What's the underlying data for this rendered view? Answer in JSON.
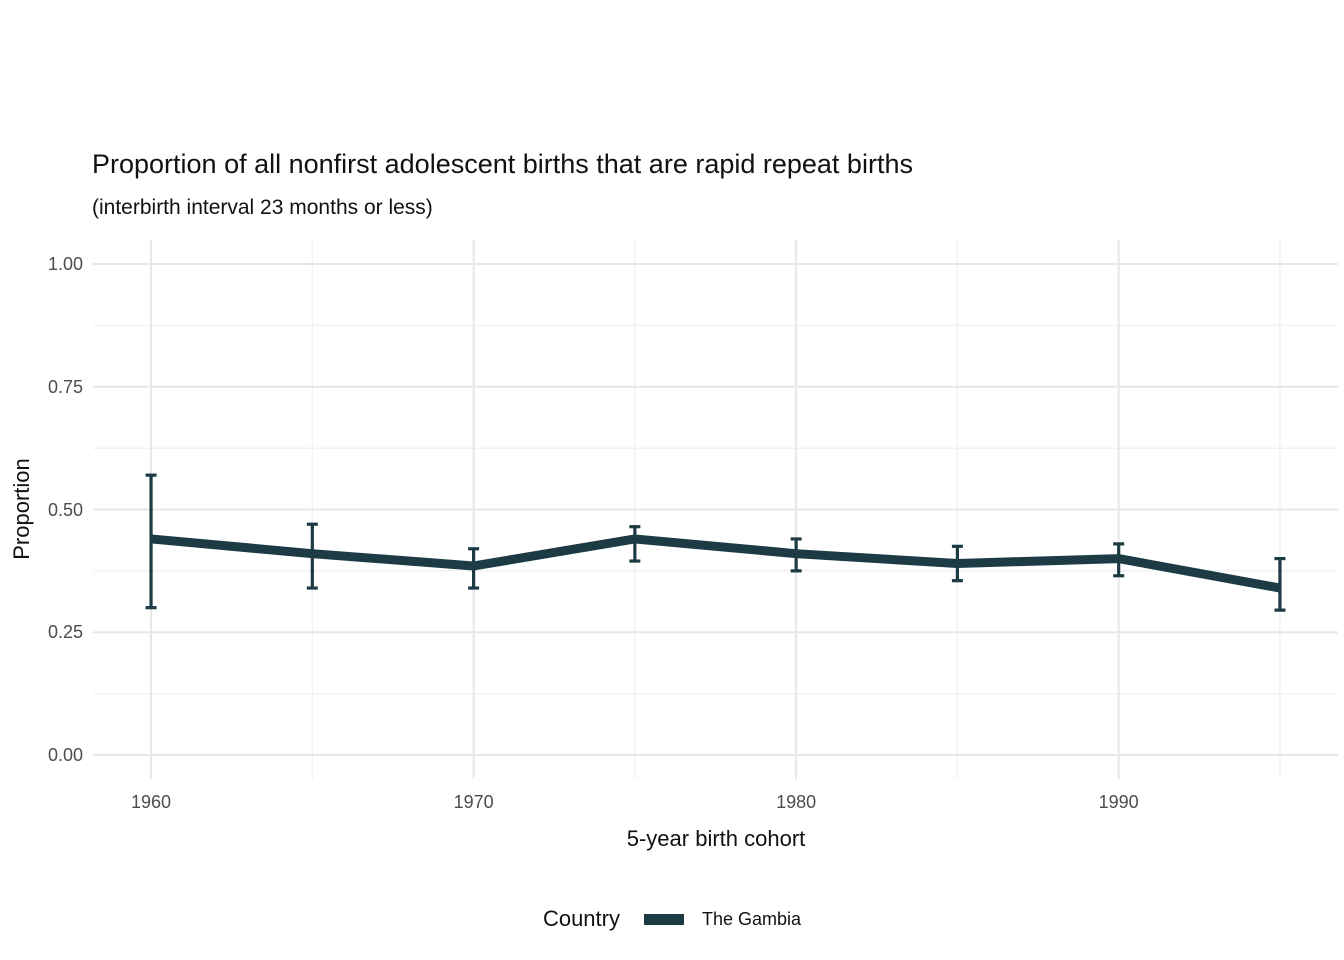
{
  "chart_data": {
    "type": "line",
    "title": "Proportion of all nonfirst adolescent births that are rapid repeat births",
    "subtitle": "(interbirth interval 23 months or less)",
    "xlabel": "5-year birth cohort",
    "ylabel": "Proportion",
    "xlim": [
      1958.2,
      1996.8
    ],
    "ylim": [
      0,
      1
    ],
    "grid": "major and minor gridlines on, no axis lines, white background",
    "x_major_ticks": [
      1960,
      1970,
      1980,
      1990
    ],
    "x_minor_ticks": [
      1965,
      1975,
      1985,
      1995
    ],
    "y_major_ticks": [
      1.0,
      0.75,
      0.5,
      0.25,
      0.0
    ],
    "y_minor_ticks": [
      0.875,
      0.625,
      0.375,
      0.125
    ],
    "xtick_labels": [
      "1960",
      "1970",
      "1980",
      "1990"
    ],
    "ytick_labels": [
      "1.00",
      "0.75",
      "0.50",
      "0.25",
      "0.00"
    ],
    "legend": {
      "title": "Country",
      "position": "bottom",
      "entries": [
        "The Gambia"
      ]
    },
    "series": [
      {
        "name": "The Gambia",
        "color": "#1d3b44",
        "x": [
          1960,
          1965,
          1970,
          1975,
          1980,
          1985,
          1990,
          1995
        ],
        "y": [
          0.44,
          0.41,
          0.385,
          0.44,
          0.41,
          0.39,
          0.4,
          0.34
        ],
        "ci_low": [
          0.3,
          0.34,
          0.34,
          0.395,
          0.375,
          0.355,
          0.365,
          0.295
        ],
        "ci_high": [
          0.57,
          0.47,
          0.42,
          0.465,
          0.44,
          0.425,
          0.43,
          0.4
        ]
      }
    ]
  },
  "colors": {
    "background": "#ffffff",
    "line": "#1d3b44",
    "grid_major": "#e7e7e7",
    "grid_minor": "#f1f1f1",
    "tick_label": "#4d4d4d",
    "text": "#111111"
  }
}
